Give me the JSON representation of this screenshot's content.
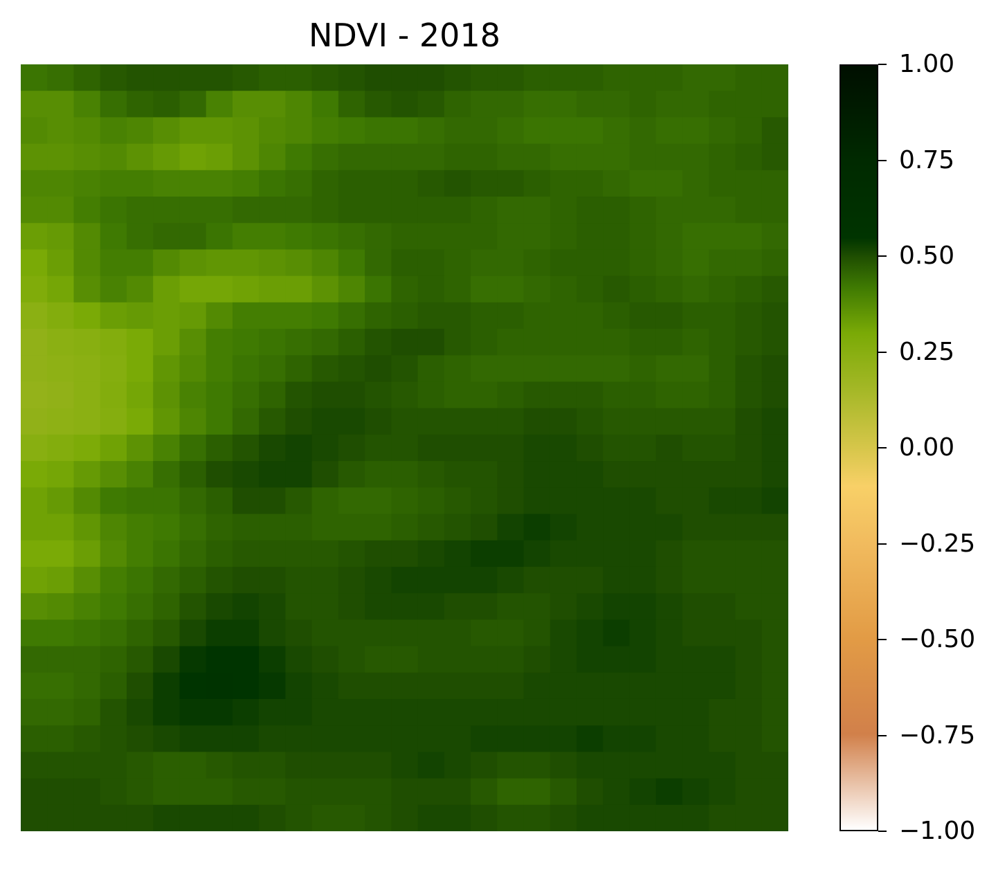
{
  "chart_data": {
    "type": "heatmap",
    "title": "NDVI - 2018",
    "xlabel": "",
    "ylabel": "",
    "axes_visible": false,
    "grid": false,
    "rows": 29,
    "cols": 29,
    "values": [
      [
        0.43,
        0.44,
        0.46,
        0.48,
        0.49,
        0.49,
        0.49,
        0.49,
        0.48,
        0.47,
        0.47,
        0.48,
        0.49,
        0.5,
        0.5,
        0.5,
        0.49,
        0.48,
        0.48,
        0.47,
        0.47,
        0.47,
        0.46,
        0.46,
        0.46,
        0.45,
        0.45,
        0.46,
        0.46
      ],
      [
        0.37,
        0.37,
        0.4,
        0.44,
        0.46,
        0.47,
        0.45,
        0.4,
        0.37,
        0.37,
        0.39,
        0.42,
        0.46,
        0.48,
        0.49,
        0.48,
        0.46,
        0.45,
        0.45,
        0.44,
        0.44,
        0.45,
        0.45,
        0.46,
        0.45,
        0.45,
        0.46,
        0.46,
        0.46
      ],
      [
        0.38,
        0.37,
        0.38,
        0.4,
        0.39,
        0.37,
        0.35,
        0.35,
        0.36,
        0.38,
        0.39,
        0.41,
        0.42,
        0.43,
        0.43,
        0.44,
        0.45,
        0.45,
        0.44,
        0.43,
        0.43,
        0.43,
        0.44,
        0.45,
        0.44,
        0.44,
        0.45,
        0.46,
        0.48
      ],
      [
        0.36,
        0.36,
        0.37,
        0.38,
        0.36,
        0.34,
        0.32,
        0.33,
        0.36,
        0.39,
        0.42,
        0.44,
        0.45,
        0.45,
        0.45,
        0.45,
        0.46,
        0.46,
        0.45,
        0.45,
        0.44,
        0.44,
        0.44,
        0.45,
        0.45,
        0.45,
        0.46,
        0.47,
        0.48
      ],
      [
        0.39,
        0.39,
        0.4,
        0.41,
        0.41,
        0.4,
        0.4,
        0.4,
        0.41,
        0.43,
        0.44,
        0.46,
        0.47,
        0.47,
        0.47,
        0.48,
        0.49,
        0.48,
        0.48,
        0.47,
        0.46,
        0.46,
        0.45,
        0.44,
        0.44,
        0.45,
        0.46,
        0.46,
        0.46
      ],
      [
        0.38,
        0.38,
        0.41,
        0.43,
        0.44,
        0.44,
        0.44,
        0.44,
        0.45,
        0.45,
        0.45,
        0.46,
        0.47,
        0.47,
        0.47,
        0.47,
        0.47,
        0.46,
        0.45,
        0.45,
        0.46,
        0.47,
        0.47,
        0.46,
        0.45,
        0.45,
        0.45,
        0.46,
        0.46
      ],
      [
        0.33,
        0.34,
        0.38,
        0.42,
        0.44,
        0.45,
        0.45,
        0.43,
        0.41,
        0.41,
        0.42,
        0.43,
        0.44,
        0.45,
        0.46,
        0.46,
        0.46,
        0.46,
        0.45,
        0.45,
        0.46,
        0.47,
        0.47,
        0.46,
        0.45,
        0.44,
        0.44,
        0.44,
        0.45
      ],
      [
        0.3,
        0.33,
        0.38,
        0.41,
        0.41,
        0.38,
        0.36,
        0.35,
        0.35,
        0.36,
        0.37,
        0.39,
        0.42,
        0.45,
        0.47,
        0.47,
        0.46,
        0.45,
        0.45,
        0.46,
        0.47,
        0.47,
        0.47,
        0.46,
        0.45,
        0.44,
        0.45,
        0.45,
        0.46
      ],
      [
        0.28,
        0.31,
        0.37,
        0.4,
        0.38,
        0.33,
        0.31,
        0.31,
        0.32,
        0.33,
        0.33,
        0.36,
        0.39,
        0.43,
        0.46,
        0.47,
        0.46,
        0.44,
        0.44,
        0.45,
        0.46,
        0.47,
        0.48,
        0.47,
        0.46,
        0.45,
        0.46,
        0.47,
        0.48
      ],
      [
        0.24,
        0.27,
        0.3,
        0.33,
        0.34,
        0.33,
        0.34,
        0.38,
        0.41,
        0.41,
        0.41,
        0.42,
        0.44,
        0.46,
        0.47,
        0.48,
        0.48,
        0.47,
        0.47,
        0.46,
        0.46,
        0.46,
        0.47,
        0.48,
        0.48,
        0.47,
        0.47,
        0.48,
        0.49
      ],
      [
        0.22,
        0.24,
        0.25,
        0.27,
        0.3,
        0.33,
        0.37,
        0.41,
        0.42,
        0.43,
        0.44,
        0.45,
        0.47,
        0.49,
        0.5,
        0.5,
        0.48,
        0.47,
        0.46,
        0.46,
        0.46,
        0.46,
        0.46,
        0.47,
        0.47,
        0.46,
        0.47,
        0.48,
        0.49
      ],
      [
        0.22,
        0.23,
        0.24,
        0.26,
        0.3,
        0.35,
        0.38,
        0.41,
        0.43,
        0.44,
        0.46,
        0.48,
        0.49,
        0.5,
        0.49,
        0.47,
        0.46,
        0.45,
        0.45,
        0.45,
        0.45,
        0.45,
        0.45,
        0.46,
        0.45,
        0.45,
        0.47,
        0.49,
        0.5
      ],
      [
        0.21,
        0.22,
        0.24,
        0.27,
        0.31,
        0.36,
        0.4,
        0.42,
        0.44,
        0.46,
        0.49,
        0.5,
        0.5,
        0.49,
        0.48,
        0.47,
        0.46,
        0.46,
        0.47,
        0.48,
        0.48,
        0.48,
        0.47,
        0.47,
        0.46,
        0.46,
        0.47,
        0.49,
        0.5
      ],
      [
        0.22,
        0.23,
        0.24,
        0.26,
        0.3,
        0.35,
        0.39,
        0.42,
        0.45,
        0.48,
        0.5,
        0.51,
        0.51,
        0.5,
        0.49,
        0.49,
        0.49,
        0.49,
        0.49,
        0.5,
        0.5,
        0.49,
        0.48,
        0.48,
        0.48,
        0.48,
        0.48,
        0.5,
        0.51
      ],
      [
        0.25,
        0.27,
        0.29,
        0.32,
        0.36,
        0.4,
        0.44,
        0.47,
        0.49,
        0.51,
        0.52,
        0.51,
        0.5,
        0.49,
        0.49,
        0.5,
        0.5,
        0.5,
        0.5,
        0.51,
        0.51,
        0.5,
        0.49,
        0.49,
        0.5,
        0.49,
        0.49,
        0.5,
        0.51
      ],
      [
        0.3,
        0.31,
        0.34,
        0.37,
        0.4,
        0.44,
        0.47,
        0.5,
        0.51,
        0.52,
        0.52,
        0.5,
        0.48,
        0.47,
        0.47,
        0.48,
        0.49,
        0.49,
        0.5,
        0.51,
        0.51,
        0.51,
        0.5,
        0.5,
        0.5,
        0.5,
        0.5,
        0.5,
        0.51
      ],
      [
        0.32,
        0.34,
        0.38,
        0.42,
        0.43,
        0.43,
        0.45,
        0.47,
        0.5,
        0.5,
        0.48,
        0.46,
        0.45,
        0.45,
        0.46,
        0.47,
        0.48,
        0.49,
        0.5,
        0.51,
        0.51,
        0.51,
        0.51,
        0.51,
        0.5,
        0.5,
        0.51,
        0.51,
        0.52
      ],
      [
        0.32,
        0.32,
        0.35,
        0.39,
        0.41,
        0.42,
        0.44,
        0.46,
        0.47,
        0.47,
        0.47,
        0.46,
        0.46,
        0.46,
        0.47,
        0.48,
        0.49,
        0.5,
        0.52,
        0.53,
        0.52,
        0.51,
        0.51,
        0.51,
        0.51,
        0.5,
        0.5,
        0.5,
        0.5
      ],
      [
        0.3,
        0.3,
        0.33,
        0.38,
        0.41,
        0.43,
        0.45,
        0.47,
        0.48,
        0.48,
        0.48,
        0.48,
        0.49,
        0.5,
        0.5,
        0.51,
        0.52,
        0.53,
        0.53,
        0.52,
        0.51,
        0.51,
        0.51,
        0.51,
        0.5,
        0.49,
        0.49,
        0.49,
        0.49
      ],
      [
        0.32,
        0.33,
        0.37,
        0.41,
        0.43,
        0.45,
        0.47,
        0.49,
        0.5,
        0.5,
        0.49,
        0.49,
        0.5,
        0.51,
        0.52,
        0.52,
        0.52,
        0.52,
        0.51,
        0.5,
        0.5,
        0.5,
        0.51,
        0.51,
        0.5,
        0.49,
        0.49,
        0.49,
        0.49
      ],
      [
        0.37,
        0.38,
        0.4,
        0.42,
        0.44,
        0.46,
        0.49,
        0.51,
        0.52,
        0.51,
        0.49,
        0.49,
        0.5,
        0.51,
        0.51,
        0.51,
        0.5,
        0.5,
        0.49,
        0.49,
        0.5,
        0.51,
        0.52,
        0.52,
        0.51,
        0.5,
        0.5,
        0.49,
        0.49
      ],
      [
        0.42,
        0.42,
        0.43,
        0.44,
        0.46,
        0.48,
        0.51,
        0.53,
        0.53,
        0.51,
        0.5,
        0.49,
        0.49,
        0.49,
        0.49,
        0.49,
        0.49,
        0.48,
        0.48,
        0.49,
        0.51,
        0.52,
        0.53,
        0.52,
        0.51,
        0.5,
        0.5,
        0.5,
        0.49
      ],
      [
        0.45,
        0.45,
        0.45,
        0.46,
        0.48,
        0.51,
        0.54,
        0.56,
        0.55,
        0.53,
        0.51,
        0.5,
        0.49,
        0.48,
        0.48,
        0.49,
        0.49,
        0.49,
        0.49,
        0.5,
        0.51,
        0.52,
        0.52,
        0.52,
        0.51,
        0.51,
        0.51,
        0.5,
        0.49
      ],
      [
        0.44,
        0.44,
        0.45,
        0.47,
        0.5,
        0.53,
        0.56,
        0.57,
        0.56,
        0.54,
        0.52,
        0.51,
        0.5,
        0.5,
        0.5,
        0.5,
        0.5,
        0.5,
        0.5,
        0.51,
        0.51,
        0.51,
        0.51,
        0.51,
        0.51,
        0.51,
        0.51,
        0.5,
        0.49
      ],
      [
        0.45,
        0.45,
        0.46,
        0.49,
        0.51,
        0.53,
        0.54,
        0.54,
        0.53,
        0.52,
        0.52,
        0.51,
        0.51,
        0.51,
        0.51,
        0.51,
        0.51,
        0.51,
        0.51,
        0.51,
        0.51,
        0.51,
        0.51,
        0.51,
        0.51,
        0.51,
        0.5,
        0.5,
        0.49
      ],
      [
        0.47,
        0.47,
        0.48,
        0.49,
        0.5,
        0.51,
        0.52,
        0.52,
        0.52,
        0.51,
        0.51,
        0.51,
        0.51,
        0.51,
        0.51,
        0.51,
        0.51,
        0.52,
        0.52,
        0.52,
        0.52,
        0.53,
        0.52,
        0.52,
        0.51,
        0.51,
        0.5,
        0.5,
        0.49
      ],
      [
        0.49,
        0.49,
        0.49,
        0.49,
        0.48,
        0.47,
        0.47,
        0.48,
        0.49,
        0.49,
        0.5,
        0.5,
        0.5,
        0.5,
        0.51,
        0.52,
        0.51,
        0.5,
        0.49,
        0.49,
        0.5,
        0.51,
        0.51,
        0.51,
        0.51,
        0.51,
        0.51,
        0.5,
        0.5
      ],
      [
        0.5,
        0.5,
        0.5,
        0.49,
        0.48,
        0.47,
        0.47,
        0.47,
        0.48,
        0.48,
        0.49,
        0.49,
        0.49,
        0.49,
        0.5,
        0.5,
        0.5,
        0.48,
        0.46,
        0.46,
        0.48,
        0.5,
        0.51,
        0.52,
        0.53,
        0.52,
        0.51,
        0.5,
        0.5
      ],
      [
        0.5,
        0.5,
        0.5,
        0.5,
        0.5,
        0.51,
        0.51,
        0.51,
        0.51,
        0.5,
        0.49,
        0.48,
        0.48,
        0.49,
        0.5,
        0.51,
        0.51,
        0.5,
        0.49,
        0.49,
        0.5,
        0.51,
        0.51,
        0.51,
        0.51,
        0.51,
        0.5,
        0.5,
        0.5
      ]
    ],
    "colorbar": {
      "vmin": -1.0,
      "vmax": 1.0,
      "ticks": [
        1.0,
        0.75,
        0.5,
        0.25,
        0.0,
        -0.25,
        -0.5,
        -0.75,
        -1.0
      ],
      "tick_labels": [
        "1.00",
        "0.75",
        "0.50",
        "0.25",
        "0.00",
        "−0.25",
        "−0.50",
        "−0.75",
        "−1.00"
      ],
      "colormap_stops": [
        {
          "value": -1.0,
          "color": "#ffffff"
        },
        {
          "value": -0.75,
          "color": "#d1804a"
        },
        {
          "value": -0.5,
          "color": "#e29b45"
        },
        {
          "value": -0.25,
          "color": "#f1bb5e"
        },
        {
          "value": -0.1,
          "color": "#f8d067"
        },
        {
          "value": 0.0,
          "color": "#d6c64a"
        },
        {
          "value": 0.15,
          "color": "#a5b827"
        },
        {
          "value": 0.3,
          "color": "#7aaa06"
        },
        {
          "value": 0.42,
          "color": "#3f7a02"
        },
        {
          "value": 0.5,
          "color": "#1f4e01"
        },
        {
          "value": 0.55,
          "color": "#003400"
        },
        {
          "value": 0.75,
          "color": "#002a00"
        },
        {
          "value": 1.0,
          "color": "#000f00"
        }
      ]
    }
  }
}
